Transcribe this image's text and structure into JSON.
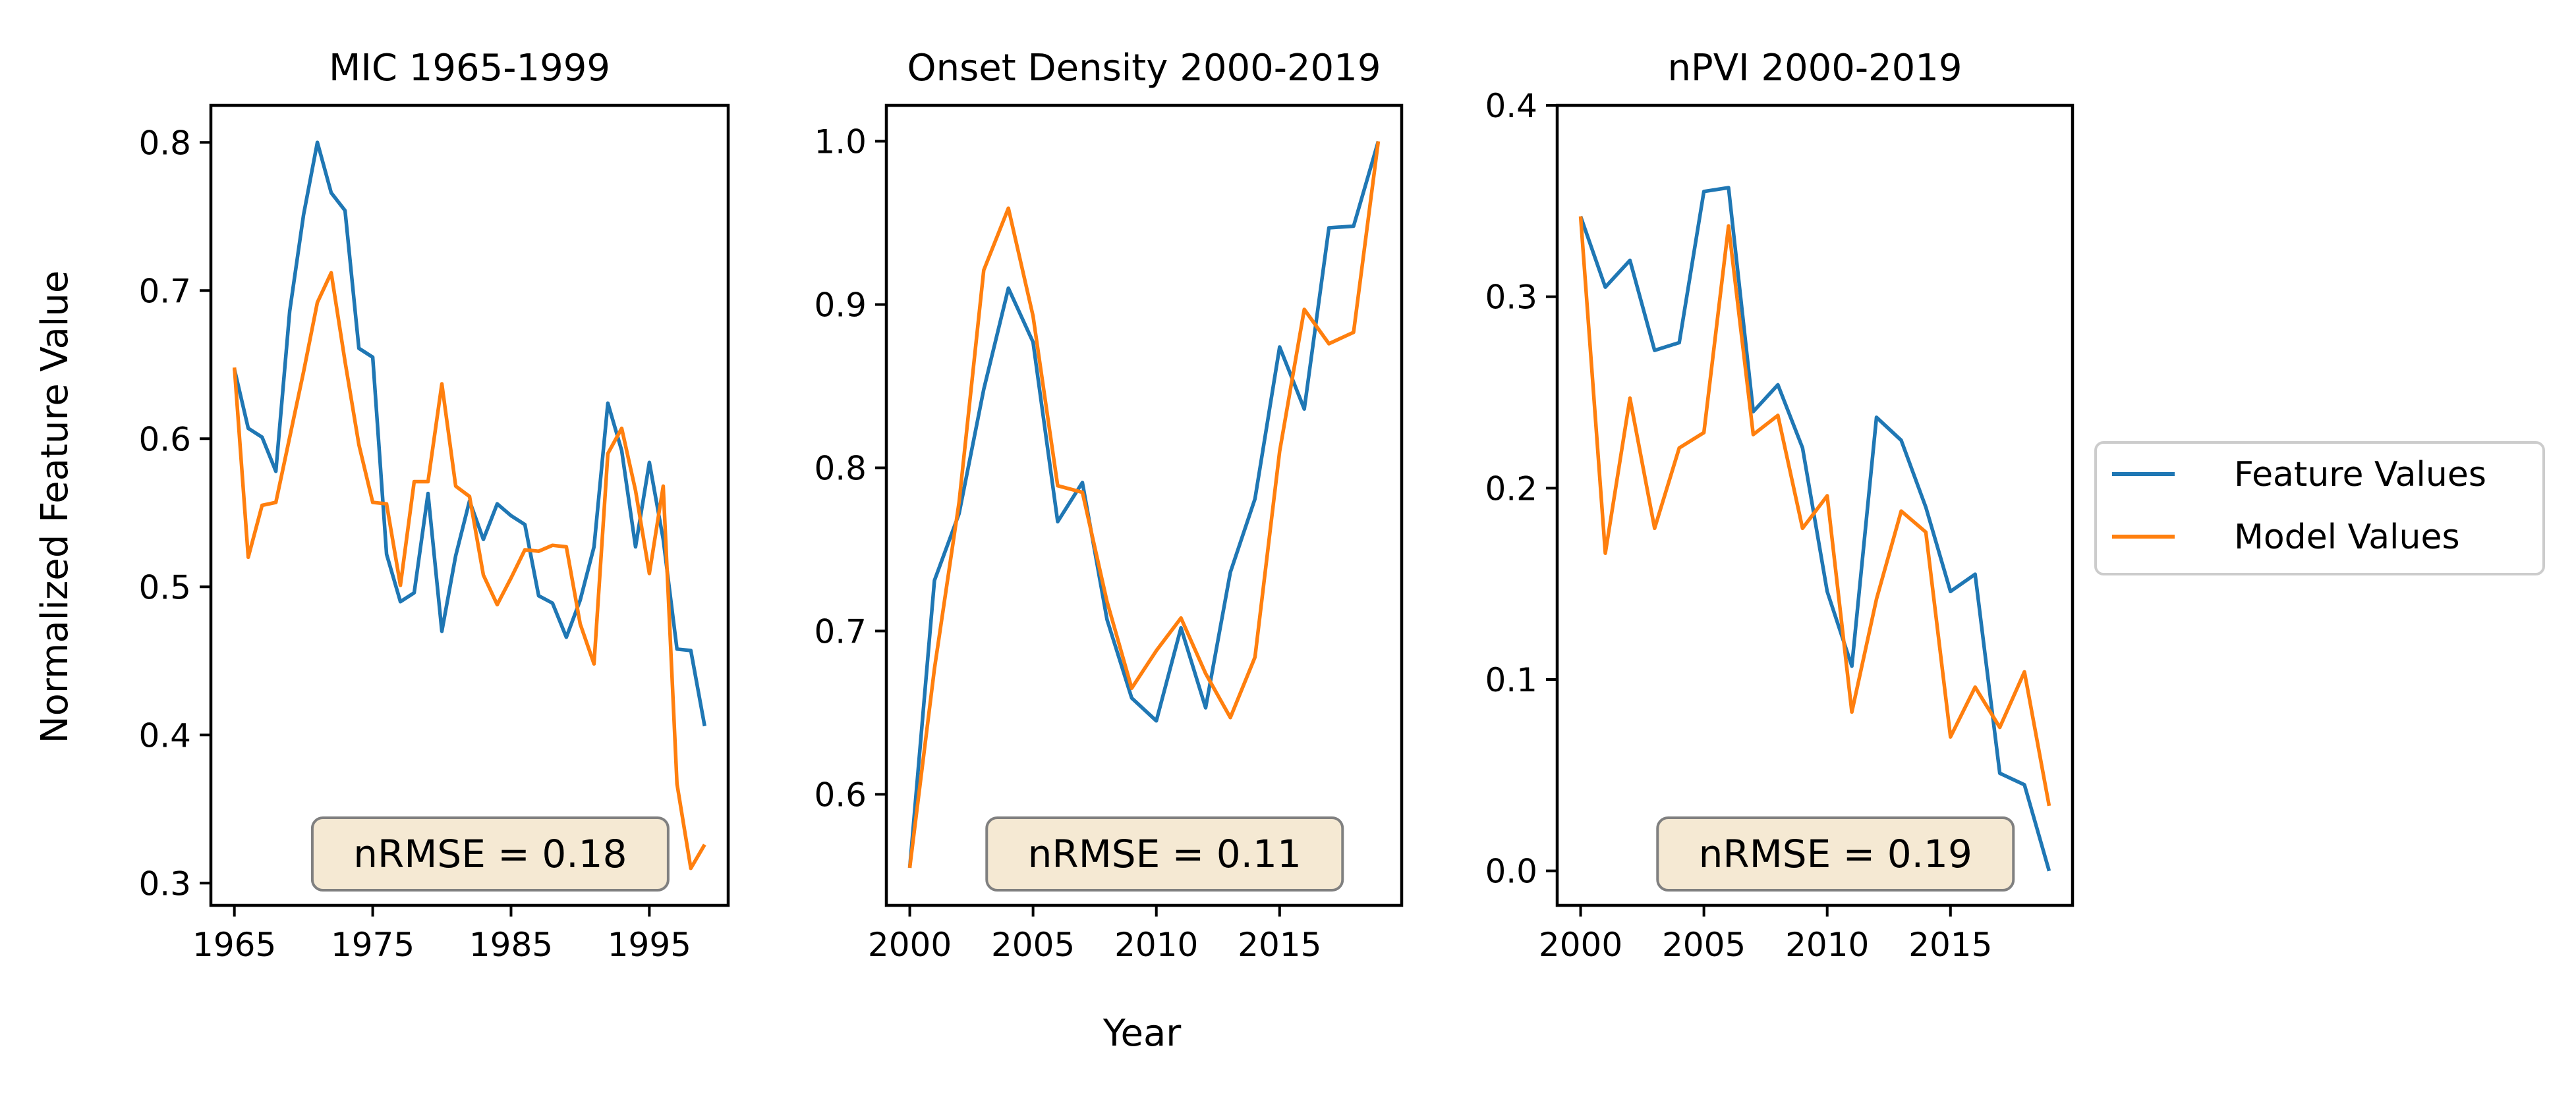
{
  "colors": {
    "feature": "#1f77b4",
    "model": "#ff7f0e",
    "annotation_bg": "#f5e9d3",
    "annotation_border": "#808080"
  },
  "figure": {
    "ylabel": "Normalized Feature Value",
    "xlabel": "Year",
    "legend": {
      "placement": "right",
      "entries": [
        "Feature Values",
        "Model Values"
      ]
    }
  },
  "chart_data": [
    {
      "type": "line",
      "title": "MIC 1965-1999",
      "xlim": [
        1963.3,
        2000.7
      ],
      "ylim": [
        0.285,
        0.825
      ],
      "xticks": [
        1965,
        1975,
        1985,
        1995
      ],
      "yticks": [
        0.3,
        0.4,
        0.5,
        0.6,
        0.7,
        0.8
      ],
      "ytick_labels": [
        "0.3",
        "0.4",
        "0.5",
        "0.6",
        "0.7",
        "0.8"
      ],
      "annotation": "nRMSE = 0.18",
      "x": [
        1965,
        1966,
        1967,
        1968,
        1969,
        1970,
        1971,
        1972,
        1973,
        1974,
        1975,
        1976,
        1977,
        1978,
        1979,
        1980,
        1981,
        1982,
        1983,
        1984,
        1985,
        1986,
        1987,
        1988,
        1989,
        1990,
        1991,
        1992,
        1993,
        1994,
        1995,
        1996,
        1997,
        1998,
        1999
      ],
      "series": [
        {
          "name": "Feature Values",
          "values": [
            0.647,
            0.607,
            0.601,
            0.578,
            0.686,
            0.751,
            0.8,
            0.766,
            0.754,
            0.661,
            0.655,
            0.522,
            0.49,
            0.496,
            0.563,
            0.47,
            0.521,
            0.558,
            0.532,
            0.556,
            0.548,
            0.542,
            0.494,
            0.489,
            0.466,
            0.491,
            0.527,
            0.624,
            0.592,
            0.527,
            0.584,
            0.532,
            0.458,
            0.457,
            0.406
          ]
        },
        {
          "name": "Model Values",
          "values": [
            0.648,
            0.52,
            0.555,
            0.557,
            0.601,
            0.645,
            0.692,
            0.712,
            0.652,
            0.596,
            0.557,
            0.556,
            0.501,
            0.571,
            0.571,
            0.637,
            0.568,
            0.561,
            0.508,
            0.488,
            0.506,
            0.525,
            0.524,
            0.528,
            0.527,
            0.475,
            0.448,
            0.59,
            0.607,
            0.565,
            0.509,
            0.568,
            0.367,
            0.31,
            0.326
          ]
        }
      ]
    },
    {
      "type": "line",
      "title": "Onset Density 2000-2019",
      "xlim": [
        1999.05,
        2019.95
      ],
      "ylim": [
        0.532,
        1.022
      ],
      "xticks": [
        2000,
        2005,
        2010,
        2015
      ],
      "yticks": [
        0.6,
        0.7,
        0.8,
        0.9,
        1.0
      ],
      "ytick_labels": [
        "0.6",
        "0.7",
        "0.8",
        "0.9",
        "1.0"
      ],
      "annotation": "nRMSE = 0.11",
      "x": [
        2000,
        2001,
        2002,
        2003,
        2004,
        2005,
        2006,
        2007,
        2008,
        2009,
        2010,
        2011,
        2012,
        2013,
        2014,
        2015,
        2016,
        2017,
        2018,
        2019
      ],
      "series": [
        {
          "name": "Feature Values",
          "values": [
            0.555,
            0.731,
            0.772,
            0.848,
            0.91,
            0.877,
            0.767,
            0.791,
            0.707,
            0.659,
            0.645,
            0.702,
            0.653,
            0.736,
            0.781,
            0.874,
            0.836,
            0.947,
            0.948,
            1.0
          ]
        },
        {
          "name": "Model Values",
          "values": [
            0.555,
            0.677,
            0.779,
            0.921,
            0.959,
            0.893,
            0.789,
            0.785,
            0.718,
            0.665,
            0.688,
            0.708,
            0.674,
            0.647,
            0.684,
            0.81,
            0.897,
            0.876,
            0.883,
            1.0
          ]
        }
      ]
    },
    {
      "type": "line",
      "title": "nPVI 2000-2019",
      "xlim": [
        1999.05,
        2019.95
      ],
      "ylim": [
        -0.018,
        0.4
      ],
      "xticks": [
        2000,
        2005,
        2010,
        2015
      ],
      "yticks": [
        0.0,
        0.1,
        0.2,
        0.3,
        0.4
      ],
      "ytick_labels": [
        "0.0",
        "0.1",
        "0.2",
        "0.3",
        "0.4"
      ],
      "annotation": "nRMSE = 0.19",
      "x": [
        2000,
        2001,
        2002,
        2003,
        2004,
        2005,
        2006,
        2007,
        2008,
        2009,
        2010,
        2011,
        2012,
        2013,
        2014,
        2015,
        2016,
        2017,
        2018,
        2019
      ],
      "series": [
        {
          "name": "Feature Values",
          "values": [
            0.342,
            0.305,
            0.319,
            0.272,
            0.276,
            0.355,
            0.357,
            0.24,
            0.254,
            0.221,
            0.146,
            0.107,
            0.237,
            0.225,
            0.19,
            0.146,
            0.155,
            0.051,
            0.045,
            0.0
          ]
        },
        {
          "name": "Model Values",
          "values": [
            0.342,
            0.166,
            0.247,
            0.179,
            0.221,
            0.229,
            0.337,
            0.228,
            0.238,
            0.179,
            0.196,
            0.083,
            0.142,
            0.188,
            0.177,
            0.07,
            0.096,
            0.075,
            0.104,
            0.034
          ]
        }
      ]
    }
  ]
}
